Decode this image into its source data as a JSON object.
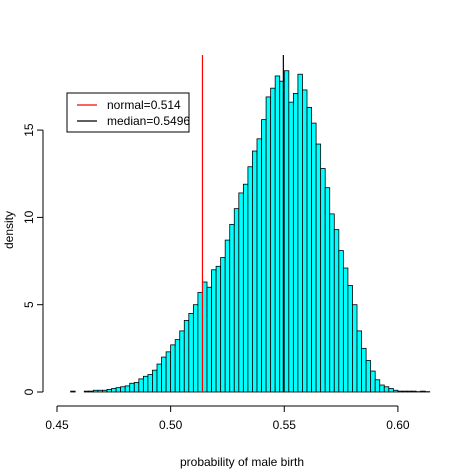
{
  "chart_data": {
    "type": "bar",
    "title": "",
    "xlabel": "probability of male birth",
    "ylabel": "density",
    "xlim": [
      0.45,
      0.615
    ],
    "ylim": [
      0,
      19.3
    ],
    "x_ticks": [
      0.45,
      0.5,
      0.55,
      0.6
    ],
    "x_tick_labels": [
      "0.45",
      "0.50",
      "0.55",
      "0.60"
    ],
    "y_ticks": [
      0,
      5,
      10,
      15
    ],
    "y_tick_labels": [
      "0",
      "5",
      "10",
      "15"
    ],
    "bin_width": 0.002,
    "bin_start": 0.456,
    "values": [
      0.05,
      0.0,
      0.0,
      0.05,
      0.05,
      0.1,
      0.1,
      0.1,
      0.15,
      0.2,
      0.25,
      0.3,
      0.35,
      0.5,
      0.55,
      0.75,
      0.9,
      1.0,
      1.25,
      1.6,
      2.0,
      2.3,
      2.7,
      3.0,
      3.5,
      4.1,
      4.5,
      5.0,
      5.7,
      6.3,
      6.0,
      7.0,
      7.2,
      7.7,
      8.7,
      9.6,
      10.5,
      11.4,
      11.9,
      12.9,
      13.8,
      14.5,
      15.6,
      16.9,
      17.4,
      18.1,
      17.8,
      18.4,
      16.6,
      17.1,
      18.2,
      17.3,
      16.3,
      15.4,
      14.2,
      12.8,
      11.7,
      10.2,
      9.3,
      8.1,
      7.1,
      6.1,
      5.0,
      3.5,
      2.5,
      1.8,
      1.2,
      0.7,
      0.4,
      0.3,
      0.2,
      0.1,
      0.05,
      0.05,
      0.05,
      0.05,
      0.02,
      0.05,
      0.02
    ],
    "bar_color": "#00ffff",
    "bar_edge_color": "#000000",
    "reference_lines": [
      {
        "label": "normal=0.514",
        "x": 0.514,
        "color": "#ff0000"
      },
      {
        "label": "median=0.5496",
        "x": 0.5496,
        "color": "#000000"
      }
    ],
    "legend_position": "top-left",
    "grid": false
  }
}
